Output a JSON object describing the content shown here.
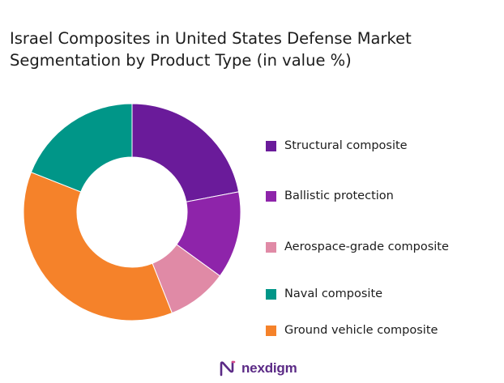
{
  "title": {
    "line1": "Israel Composites in United States Defense Market",
    "line2": "Segmentation by Product Type (in value %)"
  },
  "chart_data": {
    "type": "pie",
    "donut": true,
    "title": "Israel Composites in United States Defense Market Segmentation by Product Type (in value %)",
    "legend_position": "right",
    "series": [
      {
        "name": "Structural composite",
        "value": 22,
        "color": "#6a1b9a"
      },
      {
        "name": "Ballistic protection",
        "value": 13,
        "color": "#8e24aa"
      },
      {
        "name": "Aerospace-grade composite",
        "value": 9,
        "color": "#e08aa6"
      },
      {
        "name": "Ground vehicle composite",
        "value": 37,
        "color": "#f5822a"
      },
      {
        "name": "Naval composite",
        "value": 19,
        "color": "#009688"
      }
    ]
  },
  "legend": [
    {
      "label": "Structural composite",
      "color": "#6a1b9a"
    },
    {
      "label": "Ballistic protection",
      "color": "#8e24aa"
    },
    {
      "label": "Aerospace-grade composite",
      "color": "#e08aa6"
    },
    {
      "label": "Naval composite",
      "color": "#009688"
    },
    {
      "label": "Ground vehicle composite",
      "color": "#f5822a"
    }
  ],
  "brand": {
    "name": "nexdigm",
    "icon": "nexdigm-logo-icon",
    "color": "#5b2a86"
  }
}
